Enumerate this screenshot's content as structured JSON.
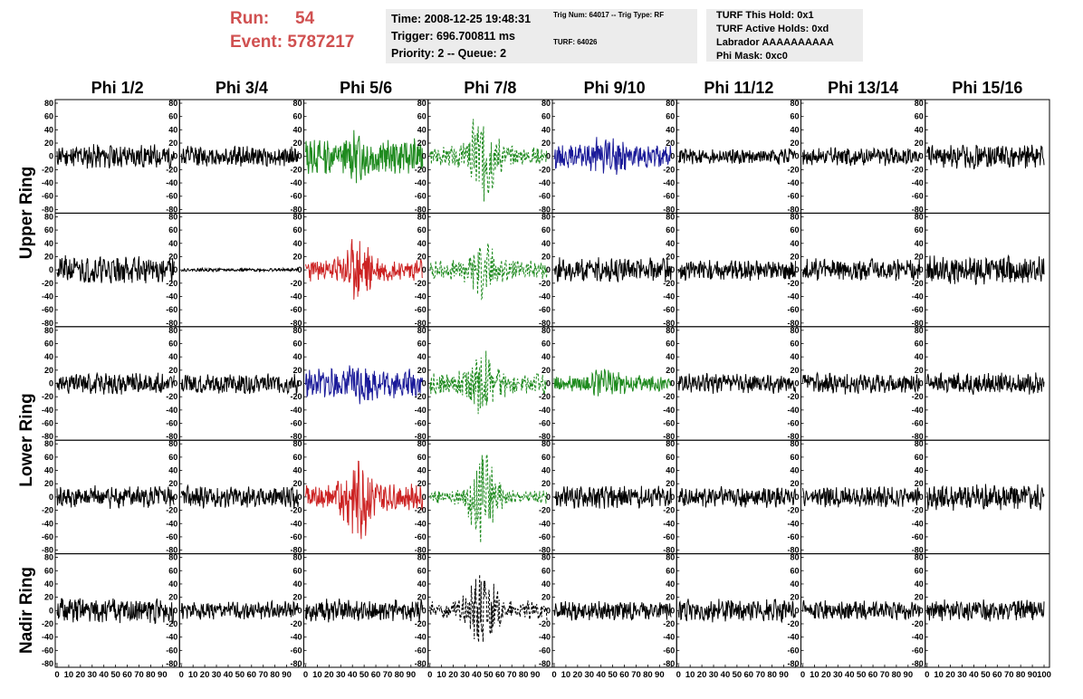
{
  "run_info": {
    "run_label": "Run:",
    "run_value": "54",
    "event_label": "Event:",
    "event_value": "5787217"
  },
  "time_box": {
    "line1": "Time: 2008-12-25 19:48:31",
    "line2": "Trigger: 696.700811 ms",
    "line3": "Priority: 2 -- Queue: 2"
  },
  "trig_box": {
    "line1": "Trig Num: 64017 -- Trig Type: RF",
    "line2": "TURF: 64026"
  },
  "turf_box": {
    "line1": "TURF This Hold: 0x1",
    "line2": "TURF Active Holds: 0xd",
    "line3": "Labrador AAAAAAAAAA",
    "line4": "Phi Mask: 0xc0"
  },
  "columns": [
    "Phi 1/2",
    "Phi 3/4",
    "Phi 5/6",
    "Phi 7/8",
    "Phi 9/10",
    "Phi 11/12",
    "Phi 13/14",
    "Phi 15/16"
  ],
  "ring_labels": [
    "Upper Ring",
    "Lower Ring",
    "Nadir Ring"
  ],
  "colors": {
    "black": "#000000",
    "green": "#1e8a1e",
    "red": "#cc2222",
    "blue": "#1a1a99",
    "run_text": "#d05050",
    "info_bg": "#ececec"
  },
  "chart_data": {
    "type": "line",
    "ylim": [
      -80,
      80
    ],
    "y_ticks": [
      -80,
      -60,
      -40,
      -20,
      0,
      20,
      40,
      60,
      80
    ],
    "y_tick_labels": [
      "-80",
      "-60",
      "-40",
      "-20",
      "0",
      "20",
      "40",
      "60",
      "80"
    ],
    "xlim": [
      0,
      100
    ],
    "x_ticks": [
      0,
      10,
      20,
      30,
      40,
      50,
      60,
      70,
      80,
      90,
      100
    ],
    "x_tick_labels": [
      "0",
      "10",
      "20",
      "30",
      "40",
      "50",
      "60",
      "70",
      "80",
      "90",
      "100"
    ],
    "panels": [
      {
        "row": 0,
        "col": 0,
        "color": "black",
        "style": "solid",
        "amp": 15,
        "burst": 0,
        "seed": 11
      },
      {
        "row": 0,
        "col": 1,
        "color": "black",
        "style": "solid",
        "amp": 13,
        "burst": 0,
        "seed": 12
      },
      {
        "row": 0,
        "col": 2,
        "color": "green",
        "style": "solid",
        "amp": 22,
        "burst": 10,
        "seed": 13
      },
      {
        "row": 0,
        "col": 3,
        "color": "green",
        "style": "dashed",
        "amp": 12,
        "burst": 50,
        "seed": 14
      },
      {
        "row": 0,
        "col": 4,
        "color": "blue",
        "style": "solid",
        "amp": 14,
        "burst": 15,
        "seed": 15
      },
      {
        "row": 0,
        "col": 5,
        "color": "black",
        "style": "solid",
        "amp": 10,
        "burst": 0,
        "seed": 16
      },
      {
        "row": 0,
        "col": 6,
        "color": "black",
        "style": "solid",
        "amp": 11,
        "burst": 0,
        "seed": 17
      },
      {
        "row": 0,
        "col": 7,
        "color": "black",
        "style": "solid",
        "amp": 15,
        "burst": 0,
        "seed": 18
      },
      {
        "row": 1,
        "col": 0,
        "color": "black",
        "style": "solid",
        "amp": 17,
        "burst": 0,
        "seed": 21
      },
      {
        "row": 1,
        "col": 1,
        "color": "black",
        "style": "solid",
        "amp": 2,
        "burst": 0,
        "seed": 22
      },
      {
        "row": 1,
        "col": 2,
        "color": "red",
        "style": "solid",
        "amp": 14,
        "burst": 30,
        "seed": 23
      },
      {
        "row": 1,
        "col": 3,
        "color": "green",
        "style": "dashed",
        "amp": 12,
        "burst": 25,
        "seed": 24
      },
      {
        "row": 1,
        "col": 4,
        "color": "black",
        "style": "solid",
        "amp": 15,
        "burst": 0,
        "seed": 25
      },
      {
        "row": 1,
        "col": 5,
        "color": "black",
        "style": "solid",
        "amp": 13,
        "burst": 0,
        "seed": 26
      },
      {
        "row": 1,
        "col": 6,
        "color": "black",
        "style": "solid",
        "amp": 14,
        "burst": 0,
        "seed": 27
      },
      {
        "row": 1,
        "col": 7,
        "color": "black",
        "style": "solid",
        "amp": 18,
        "burst": 0,
        "seed": 28
      },
      {
        "row": 2,
        "col": 0,
        "color": "black",
        "style": "solid",
        "amp": 13,
        "burst": 0,
        "seed": 31
      },
      {
        "row": 2,
        "col": 1,
        "color": "black",
        "style": "solid",
        "amp": 13,
        "burst": 0,
        "seed": 32
      },
      {
        "row": 2,
        "col": 2,
        "color": "blue",
        "style": "solid",
        "amp": 18,
        "burst": 8,
        "seed": 33
      },
      {
        "row": 2,
        "col": 3,
        "color": "green",
        "style": "dashed",
        "amp": 14,
        "burst": 30,
        "seed": 34
      },
      {
        "row": 2,
        "col": 4,
        "color": "green",
        "style": "solid",
        "amp": 10,
        "burst": 12,
        "seed": 35
      },
      {
        "row": 2,
        "col": 5,
        "color": "black",
        "style": "solid",
        "amp": 12,
        "burst": 0,
        "seed": 36
      },
      {
        "row": 2,
        "col": 6,
        "color": "black",
        "style": "solid",
        "amp": 13,
        "burst": 0,
        "seed": 37
      },
      {
        "row": 2,
        "col": 7,
        "color": "black",
        "style": "solid",
        "amp": 13,
        "burst": 0,
        "seed": 38
      },
      {
        "row": 3,
        "col": 0,
        "color": "black",
        "style": "solid",
        "amp": 14,
        "burst": 0,
        "seed": 41
      },
      {
        "row": 3,
        "col": 1,
        "color": "black",
        "style": "solid",
        "amp": 14,
        "burst": 0,
        "seed": 42
      },
      {
        "row": 3,
        "col": 2,
        "color": "red",
        "style": "solid",
        "amp": 16,
        "burst": 40,
        "seed": 43
      },
      {
        "row": 3,
        "col": 3,
        "color": "green",
        "style": "dashed",
        "amp": 8,
        "burst": 55,
        "seed": 44
      },
      {
        "row": 3,
        "col": 4,
        "color": "black",
        "style": "solid",
        "amp": 14,
        "burst": 0,
        "seed": 45
      },
      {
        "row": 3,
        "col": 5,
        "color": "black",
        "style": "solid",
        "amp": 13,
        "burst": 0,
        "seed": 46
      },
      {
        "row": 3,
        "col": 6,
        "color": "black",
        "style": "solid",
        "amp": 13,
        "burst": 0,
        "seed": 47
      },
      {
        "row": 3,
        "col": 7,
        "color": "black",
        "style": "solid",
        "amp": 17,
        "burst": 0,
        "seed": 48
      },
      {
        "row": 4,
        "col": 0,
        "color": "black",
        "style": "solid",
        "amp": 16,
        "burst": 0,
        "seed": 51
      },
      {
        "row": 4,
        "col": 1,
        "color": "black",
        "style": "solid",
        "amp": 11,
        "burst": 0,
        "seed": 52
      },
      {
        "row": 4,
        "col": 2,
        "color": "black",
        "style": "solid",
        "amp": 14,
        "burst": 0,
        "seed": 53
      },
      {
        "row": 4,
        "col": 3,
        "color": "black",
        "style": "dashed",
        "amp": 12,
        "burst": 40,
        "seed": 54
      },
      {
        "row": 4,
        "col": 4,
        "color": "black",
        "style": "solid",
        "amp": 12,
        "burst": 0,
        "seed": 55
      },
      {
        "row": 4,
        "col": 5,
        "color": "black",
        "style": "solid",
        "amp": 14,
        "burst": 0,
        "seed": 56
      },
      {
        "row": 4,
        "col": 6,
        "color": "black",
        "style": "solid",
        "amp": 12,
        "burst": 0,
        "seed": 57
      },
      {
        "row": 4,
        "col": 7,
        "color": "black",
        "style": "solid",
        "amp": 13,
        "burst": 0,
        "seed": 58
      }
    ]
  }
}
